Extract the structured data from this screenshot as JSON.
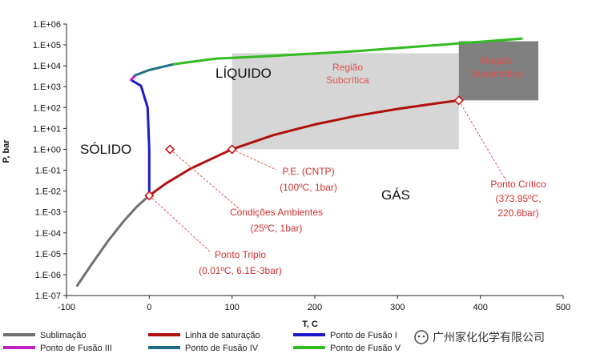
{
  "chart_data": {
    "type": "line",
    "xlabel": "T, C",
    "ylabel": "P, bar",
    "xlim": [
      -100,
      500
    ],
    "ylim_log10": [
      -7,
      6
    ],
    "y_scale": "log",
    "x_ticks": [
      "-100",
      "0",
      "100",
      "200",
      "300",
      "400",
      "500"
    ],
    "y_ticks": [
      "1.E-07",
      "1.E-06",
      "1.E-05",
      "1.E-04",
      "1.E-03",
      "1.E-02",
      "1.E-01",
      "1.E+00",
      "1.E+01",
      "1.E+02",
      "1.E+03",
      "1.E+04",
      "1.E+05",
      "1.E+06"
    ],
    "grid": false,
    "legend_position": "bottom",
    "series": [
      {
        "name": "Sublimação",
        "color": "#707070",
        "points": [
          [
            -87,
            3e-07
          ],
          [
            -70,
            3e-06
          ],
          [
            -50,
            4e-05
          ],
          [
            -30,
            0.0004
          ],
          [
            -15,
            0.0018
          ],
          [
            0.01,
            0.0061
          ]
        ]
      },
      {
        "name": "Linha de saturação",
        "color": "#b01010",
        "points": [
          [
            0.01,
            0.0061
          ],
          [
            20,
            0.023
          ],
          [
            50,
            0.12
          ],
          [
            100,
            1.01
          ],
          [
            150,
            4.8
          ],
          [
            200,
            15.5
          ],
          [
            250,
            40
          ],
          [
            300,
            86
          ],
          [
            350,
            165
          ],
          [
            373.95,
            220.6
          ]
        ]
      },
      {
        "name": "Ponto de Fusão I",
        "color": "#1a1acc",
        "points": [
          [
            0.01,
            0.0061
          ],
          [
            0.01,
            1
          ],
          [
            -2,
            100
          ],
          [
            -10,
            1100
          ],
          [
            -22,
            2100
          ]
        ]
      },
      {
        "name": "Ponto de Fusão III",
        "color": "#c020c0",
        "points": [
          [
            -22,
            2100
          ],
          [
            -17,
            3500
          ]
        ]
      },
      {
        "name": "Ponto de Fusão IV",
        "color": "#1f6e85",
        "points": [
          [
            -17,
            3500
          ],
          [
            0,
            6300
          ],
          [
            30,
            12000
          ]
        ]
      },
      {
        "name": "Ponto de Fusão V",
        "color": "#33bb22",
        "points": [
          [
            30,
            12000
          ],
          [
            80,
            22000
          ],
          [
            150,
            30000
          ],
          [
            250,
            50000
          ],
          [
            350,
            100000
          ],
          [
            450,
            200000
          ]
        ]
      }
    ],
    "markers": [
      {
        "label": "Ponto Triplo",
        "x": 0.01,
        "y": 0.0061
      },
      {
        "label": "Condições Ambientes",
        "x": 25,
        "y": 1
      },
      {
        "label": "P.E. (CNTP)",
        "x": 100,
        "y": 1
      },
      {
        "label": "Ponto Crítico",
        "x": 373.95,
        "y": 220.6
      }
    ],
    "regions": [
      {
        "label": "Região Subcrítica",
        "color": "#d6d6d6"
      },
      {
        "label": "Região Supercrítica",
        "color": "#808080"
      }
    ]
  },
  "labels": {
    "liquid": "LÍQUIDO",
    "solid": "SÓLIDO",
    "gas": "GÁS",
    "subcritical_1": "Região",
    "subcritical_2": "Subcrítica",
    "supercritical_1": "Região",
    "supercritical_2": "Supercrítica",
    "pe_1": "P.E. (CNTP)",
    "pe_2": "(100ºC, 1bar)",
    "ambient_1": "Condições Ambientes",
    "ambient_2": "(25ºC, 1bar)",
    "triple_1": "Ponto Triplo",
    "triple_2": "(0.01ºC, 6.1E-3bar)",
    "critical_1": "Ponto Crítico",
    "critical_2": "(373.95ºC,",
    "critical_3": "220.6bar)"
  },
  "watermark": "广州家化化学有限公司",
  "colors": {
    "axis": "#222222",
    "marker": "#cc1111",
    "leader": "#e05555"
  }
}
